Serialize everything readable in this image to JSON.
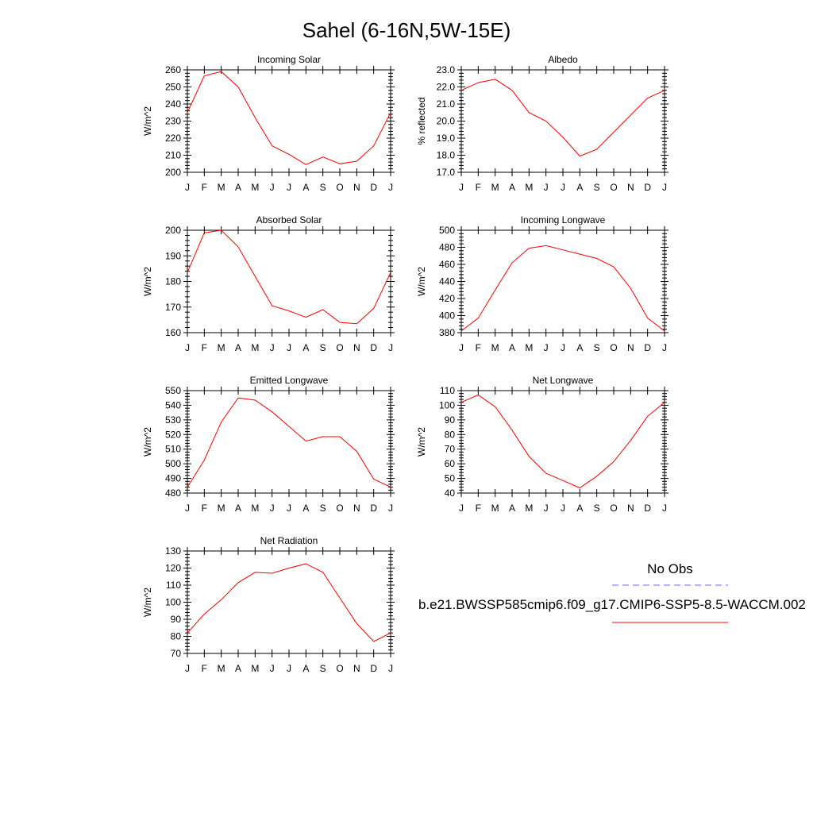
{
  "page": {
    "title": "Sahel (6-16N,5W-15E)"
  },
  "legend": {
    "obs_label": "No Obs",
    "obs_color": "#6666ff",
    "model_label": "b.e21.BWSSP585cmip6.f09_g17.CMIP6-SSP5-8.5-WACCM.002",
    "model_color": "#ff0000"
  },
  "chart_data": [
    {
      "type": "line",
      "title": "Incoming Solar",
      "ylabel": "W/m^2",
      "categories": [
        "J",
        "F",
        "M",
        "A",
        "M",
        "J",
        "J",
        "A",
        "S",
        "O",
        "N",
        "D",
        "J"
      ],
      "ylim": [
        200,
        260
      ],
      "yticks": [
        200,
        210,
        220,
        230,
        240,
        250,
        260
      ],
      "ytick_decimals": 0,
      "series": [
        {
          "values": [
            235,
            256.5,
            259,
            250,
            232,
            215.5,
            210.5,
            204.5,
            209,
            205,
            206.5,
            215.5,
            235
          ],
          "color": "#ff0000"
        }
      ]
    },
    {
      "type": "line",
      "title": "Albedo",
      "ylabel": "% reflected",
      "categories": [
        "J",
        "F",
        "M",
        "A",
        "M",
        "J",
        "J",
        "A",
        "S",
        "O",
        "N",
        "D",
        "J"
      ],
      "ylim": [
        17,
        23
      ],
      "yticks": [
        17,
        18,
        19,
        20,
        21,
        22,
        23
      ],
      "ytick_decimals": 1,
      "series": [
        {
          "values": [
            21.8,
            22.25,
            22.45,
            21.8,
            20.5,
            20.0,
            19.05,
            17.95,
            18.35,
            19.35,
            20.35,
            21.35,
            21.8
          ],
          "color": "#ff0000"
        }
      ]
    },
    {
      "type": "line",
      "title": "Absorbed Solar",
      "ylabel": "W/m^2",
      "categories": [
        "J",
        "F",
        "M",
        "A",
        "M",
        "J",
        "J",
        "A",
        "S",
        "O",
        "N",
        "D",
        "J"
      ],
      "ylim": [
        160,
        200
      ],
      "yticks": [
        160,
        170,
        180,
        190,
        200
      ],
      "ytick_decimals": 0,
      "series": [
        {
          "values": [
            183.5,
            199,
            200,
            193.5,
            182,
            170.5,
            168.5,
            166,
            169,
            164,
            163.5,
            169.5,
            183.5
          ],
          "color": "#ff0000"
        }
      ]
    },
    {
      "type": "line",
      "title": "Incoming Longwave",
      "ylabel": "W/m^2",
      "categories": [
        "J",
        "F",
        "M",
        "A",
        "M",
        "J",
        "J",
        "A",
        "S",
        "O",
        "N",
        "D",
        "J"
      ],
      "ylim": [
        380,
        500
      ],
      "yticks": [
        380,
        400,
        420,
        440,
        460,
        480,
        500
      ],
      "ytick_decimals": 0,
      "series": [
        {
          "values": [
            382,
            397,
            430,
            462,
            479,
            482,
            477,
            472,
            467,
            457,
            432,
            397,
            382
          ],
          "color": "#ff0000"
        }
      ]
    },
    {
      "type": "line",
      "title": "Emitted Longwave",
      "ylabel": "W/m^2",
      "categories": [
        "J",
        "F",
        "M",
        "A",
        "M",
        "J",
        "J",
        "A",
        "S",
        "O",
        "N",
        "D",
        "J"
      ],
      "ylim": [
        480,
        550
      ],
      "yticks": [
        480,
        490,
        500,
        510,
        520,
        530,
        540,
        550
      ],
      "ytick_decimals": 0,
      "series": [
        {
          "values": [
            484,
            502.5,
            528.5,
            545,
            543.5,
            535.5,
            525.5,
            515.5,
            518.5,
            518.5,
            508.5,
            489.5,
            484
          ],
          "color": "#ff0000"
        }
      ]
    },
    {
      "type": "line",
      "title": "Net Longwave",
      "ylabel": "W/m^2",
      "categories": [
        "J",
        "F",
        "M",
        "A",
        "M",
        "J",
        "J",
        "A",
        "S",
        "O",
        "N",
        "D",
        "J"
      ],
      "ylim": [
        40,
        110
      ],
      "yticks": [
        40,
        50,
        60,
        70,
        80,
        90,
        100,
        110
      ],
      "ytick_decimals": 0,
      "series": [
        {
          "values": [
            102,
            107,
            99,
            83,
            65,
            53.5,
            48.5,
            43.5,
            51.5,
            61.5,
            76,
            92.5,
            102
          ],
          "color": "#ff0000"
        }
      ]
    },
    {
      "type": "line",
      "title": "Net Radiation",
      "ylabel": "W/m^2",
      "categories": [
        "J",
        "F",
        "M",
        "A",
        "M",
        "J",
        "J",
        "A",
        "S",
        "O",
        "N",
        "D",
        "J"
      ],
      "ylim": [
        70,
        130
      ],
      "yticks": [
        70,
        80,
        90,
        100,
        110,
        120,
        130
      ],
      "ytick_decimals": 0,
      "series": [
        {
          "values": [
            82,
            93,
            101.5,
            111.5,
            117.5,
            117,
            120,
            122.5,
            117.5,
            102.5,
            87.5,
            77,
            82
          ],
          "color": "#ff0000"
        }
      ]
    }
  ]
}
